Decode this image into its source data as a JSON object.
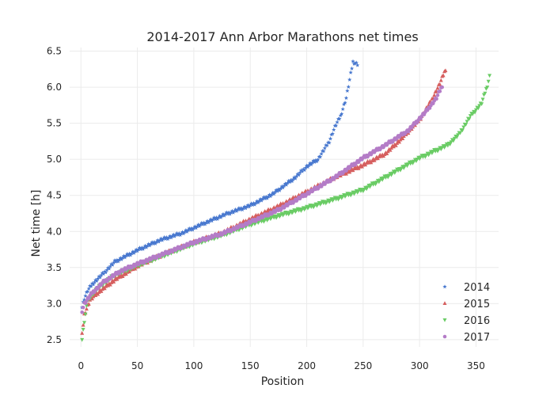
{
  "chart_data": {
    "type": "scatter",
    "title": "2014-2017 Ann Arbor Marathons net times",
    "xlabel": "Position",
    "ylabel": "Net time [h]",
    "xlim": [
      -10,
      370
    ],
    "ylim": [
      2.4,
      6.55
    ],
    "xticks": [
      "0",
      "50",
      "100",
      "150",
      "200",
      "250",
      "300",
      "350"
    ],
    "yticks": [
      "2.5",
      "3.0",
      "3.5",
      "4.0",
      "4.5",
      "5.0",
      "5.5",
      "6.0",
      "6.5"
    ],
    "grid": true,
    "legend_position": "bottom-right",
    "series": [
      {
        "name": "2014",
        "color": "#4878cf",
        "marker": "star",
        "curve": [
          [
            1,
            2.95
          ],
          [
            3,
            3.07
          ],
          [
            6,
            3.18
          ],
          [
            10,
            3.27
          ],
          [
            20,
            3.42
          ],
          [
            30,
            3.58
          ],
          [
            50,
            3.74
          ],
          [
            70,
            3.88
          ],
          [
            90,
            3.98
          ],
          [
            110,
            4.12
          ],
          [
            130,
            4.25
          ],
          [
            150,
            4.36
          ],
          [
            170,
            4.52
          ],
          [
            190,
            4.75
          ],
          [
            200,
            4.9
          ],
          [
            210,
            5.0
          ],
          [
            220,
            5.25
          ],
          [
            225,
            5.45
          ],
          [
            230,
            5.6
          ],
          [
            235,
            5.85
          ],
          [
            238,
            6.1
          ],
          [
            241,
            6.35
          ],
          [
            245,
            6.32
          ]
        ]
      },
      {
        "name": "2015",
        "color": "#d65f5f",
        "marker": "triangle-up",
        "curve": [
          [
            1,
            2.57
          ],
          [
            3,
            2.85
          ],
          [
            8,
            3.05
          ],
          [
            15,
            3.15
          ],
          [
            30,
            3.33
          ],
          [
            50,
            3.52
          ],
          [
            75,
            3.7
          ],
          [
            100,
            3.85
          ],
          [
            125,
            3.98
          ],
          [
            150,
            4.17
          ],
          [
            175,
            4.35
          ],
          [
            200,
            4.55
          ],
          [
            225,
            4.75
          ],
          [
            250,
            4.92
          ],
          [
            270,
            5.08
          ],
          [
            285,
            5.3
          ],
          [
            300,
            5.55
          ],
          [
            310,
            5.8
          ],
          [
            318,
            6.05
          ],
          [
            323,
            6.25
          ]
        ]
      },
      {
        "name": "2016",
        "color": "#6acc65",
        "marker": "triangle-down",
        "curve": [
          [
            1,
            2.5
          ],
          [
            3,
            2.75
          ],
          [
            6,
            3.05
          ],
          [
            15,
            3.22
          ],
          [
            30,
            3.4
          ],
          [
            50,
            3.53
          ],
          [
            75,
            3.68
          ],
          [
            100,
            3.83
          ],
          [
            125,
            3.95
          ],
          [
            150,
            4.1
          ],
          [
            175,
            4.22
          ],
          [
            200,
            4.33
          ],
          [
            225,
            4.45
          ],
          [
            250,
            4.58
          ],
          [
            275,
            4.8
          ],
          [
            300,
            5.02
          ],
          [
            325,
            5.2
          ],
          [
            335,
            5.35
          ],
          [
            345,
            5.6
          ],
          [
            355,
            5.78
          ],
          [
            360,
            6.02
          ],
          [
            362,
            6.15
          ]
        ]
      },
      {
        "name": "2017",
        "color": "#b47cc7",
        "marker": "circle",
        "curve": [
          [
            1,
            2.9
          ],
          [
            3,
            3.0
          ],
          [
            10,
            3.15
          ],
          [
            20,
            3.3
          ],
          [
            35,
            3.45
          ],
          [
            50,
            3.55
          ],
          [
            75,
            3.7
          ],
          [
            100,
            3.85
          ],
          [
            125,
            3.97
          ],
          [
            150,
            4.13
          ],
          [
            175,
            4.3
          ],
          [
            200,
            4.52
          ],
          [
            225,
            4.75
          ],
          [
            250,
            5.02
          ],
          [
            270,
            5.2
          ],
          [
            290,
            5.4
          ],
          [
            305,
            5.65
          ],
          [
            315,
            5.85
          ],
          [
            320,
            6.02
          ]
        ]
      }
    ]
  }
}
